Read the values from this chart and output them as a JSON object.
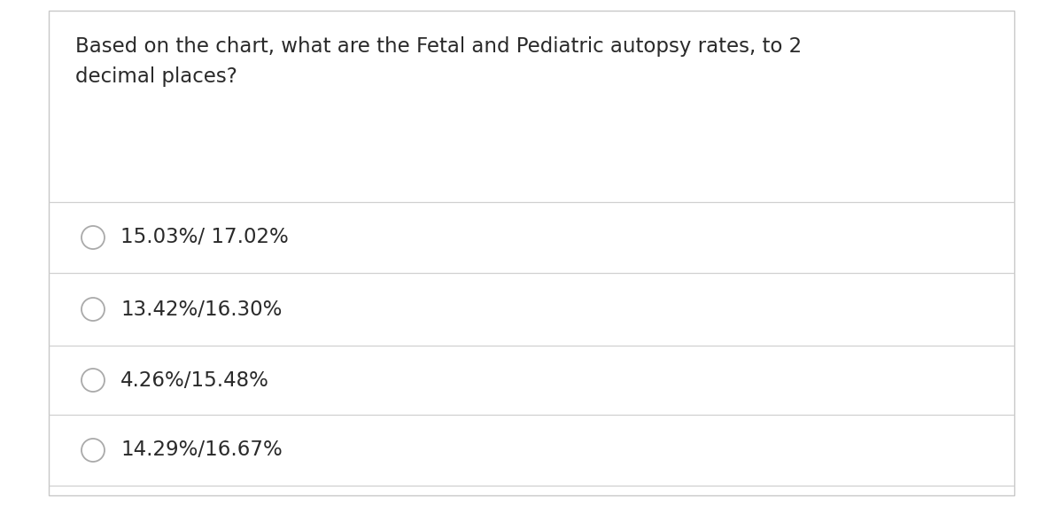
{
  "question": "Based on the chart, what are the Fetal and Pediatric autopsy rates, to 2\ndecimal places?",
  "options": [
    "15.03%/ 17.02%",
    "13.42%/16.30%",
    "4.26%/15.48%",
    "14.29%/16.67%"
  ],
  "bg_color": "#ffffff",
  "border_color": "#c8c8c8",
  "line_color": "#d0d0d0",
  "text_color": "#2a2a2a",
  "question_fontsize": 16.5,
  "option_fontsize": 16.5,
  "circle_color": "#aaaaaa"
}
